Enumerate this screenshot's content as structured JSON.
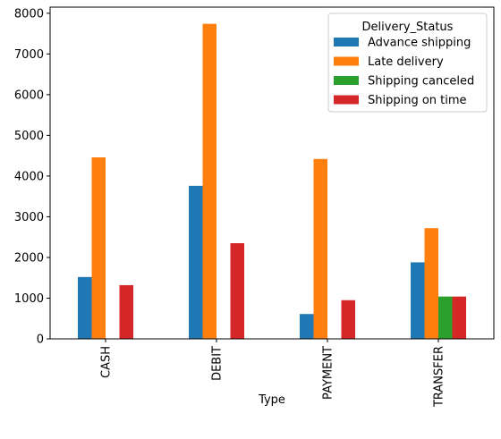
{
  "chart_data": {
    "type": "bar",
    "xlabel": "Type",
    "ylabel": "",
    "categories": [
      "CASH",
      "DEBIT",
      "PAYMENT",
      "TRANSFER"
    ],
    "ylim": [
      0,
      8150
    ],
    "yticks": [
      0,
      1000,
      2000,
      3000,
      4000,
      5000,
      6000,
      7000,
      8000
    ],
    "grid": false,
    "legend": {
      "title": "Delivery_Status",
      "placement": "top-right"
    },
    "series": [
      {
        "name": "Advance shipping",
        "color": "#1f77b4",
        "values": [
          1520,
          3760,
          610,
          1880
        ]
      },
      {
        "name": "Late delivery",
        "color": "#ff7f0e",
        "values": [
          4460,
          7740,
          4420,
          2720
        ]
      },
      {
        "name": "Shipping canceled",
        "color": "#2ca02c",
        "values": [
          0,
          0,
          0,
          1040
        ]
      },
      {
        "name": "Shipping on time",
        "color": "#d62728",
        "values": [
          1320,
          2350,
          950,
          1040
        ]
      }
    ]
  }
}
